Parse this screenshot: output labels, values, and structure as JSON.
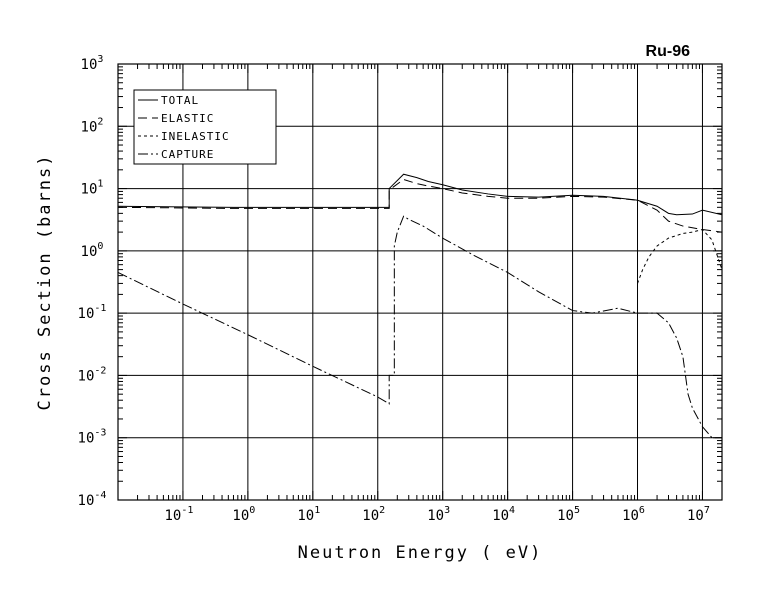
{
  "chart_data": {
    "type": "line",
    "title": "Ru-96",
    "xlabel": "Neutron Energy ( eV)",
    "ylabel": "Cross Section (barns)",
    "x_scale": "log",
    "y_scale": "log",
    "xlim": [
      0.01,
      20000000
    ],
    "ylim": [
      0.0001,
      1000
    ],
    "grid": true,
    "legend_position": "top-left",
    "x_ticks": [
      {
        "base": "10",
        "exp": "-1",
        "value": 0.1
      },
      {
        "base": "10",
        "exp": "0",
        "value": 1
      },
      {
        "base": "10",
        "exp": "1",
        "value": 10
      },
      {
        "base": "10",
        "exp": "2",
        "value": 100
      },
      {
        "base": "10",
        "exp": "3",
        "value": 1000
      },
      {
        "base": "10",
        "exp": "4",
        "value": 10000
      },
      {
        "base": "10",
        "exp": "5",
        "value": 100000
      },
      {
        "base": "10",
        "exp": "6",
        "value": 1000000
      },
      {
        "base": "10",
        "exp": "7",
        "value": 10000000
      }
    ],
    "y_ticks": [
      {
        "base": "10",
        "exp": "-4",
        "value": 0.0001
      },
      {
        "base": "10",
        "exp": "-3",
        "value": 0.001
      },
      {
        "base": "10",
        "exp": "-2",
        "value": 0.01
      },
      {
        "base": "10",
        "exp": "-1",
        "value": 0.1
      },
      {
        "base": "10",
        "exp": "0",
        "value": 1
      },
      {
        "base": "10",
        "exp": "1",
        "value": 10
      },
      {
        "base": "10",
        "exp": "2",
        "value": 100
      },
      {
        "base": "10",
        "exp": "3",
        "value": 1000
      }
    ],
    "series": [
      {
        "name": "TOTAL",
        "dash": "",
        "step": false,
        "x": [
          0.01,
          0.6,
          0.6,
          150,
          150,
          250,
          400,
          600,
          1000,
          2000,
          5000,
          10000,
          30000,
          100000,
          300000,
          1000000,
          2000000,
          3000000,
          4000000,
          7000000,
          10000000,
          20000000
        ],
        "y": [
          5.2,
          5.0,
          5.0,
          5.0,
          10,
          17,
          15,
          13,
          11.5,
          9.5,
          8.2,
          7.5,
          7.3,
          7.8,
          7.5,
          6.5,
          5.2,
          4.0,
          3.8,
          3.9,
          4.5,
          3.8
        ]
      },
      {
        "name": "ELASTIC",
        "dash": "9,5",
        "step": false,
        "x": [
          0.01,
          0.6,
          150,
          150,
          250,
          400,
          600,
          1000,
          2000,
          5000,
          10000,
          30000,
          100000,
          300000,
          1000000,
          2000000,
          3000000,
          5000000,
          10000000,
          20000000
        ],
        "y": [
          5.0,
          4.8,
          4.8,
          9.5,
          14,
          12,
          11,
          10,
          8.5,
          7.5,
          7.0,
          7.0,
          7.5,
          7.3,
          6.5,
          4.5,
          3.0,
          2.5,
          2.2,
          2.0
        ]
      },
      {
        "name": "INELASTIC",
        "dash": "3,3",
        "step": false,
        "x": [
          1000000,
          1200000,
          1500000,
          2000000,
          3000000,
          5000000,
          7000000,
          10000000,
          14000000,
          20000000
        ],
        "y": [
          0.3,
          0.5,
          0.8,
          1.2,
          1.6,
          1.9,
          2.0,
          2.2,
          1.5,
          0.5
        ]
      },
      {
        "name": "CAPTURE",
        "dash": "10,3,2,3",
        "step": false,
        "x": [
          0.01,
          0.1,
          1,
          10,
          100,
          150,
          150,
          180,
          180,
          200,
          250,
          300,
          500,
          1000,
          3000,
          10000,
          30000,
          100000,
          200000,
          500000,
          1000000,
          2000000,
          3000000,
          4000000,
          5000000,
          6000000,
          7000000,
          10000000,
          14000000,
          20000000
        ],
        "y": [
          0.45,
          0.14,
          0.045,
          0.014,
          0.0045,
          0.0035,
          0.01,
          0.01,
          1.2,
          2.0,
          3.6,
          3.2,
          2.5,
          1.6,
          0.85,
          0.45,
          0.22,
          0.11,
          0.1,
          0.12,
          0.1,
          0.1,
          0.07,
          0.04,
          0.02,
          0.005,
          0.003,
          0.0015,
          0.001,
          0.001
        ]
      }
    ]
  }
}
